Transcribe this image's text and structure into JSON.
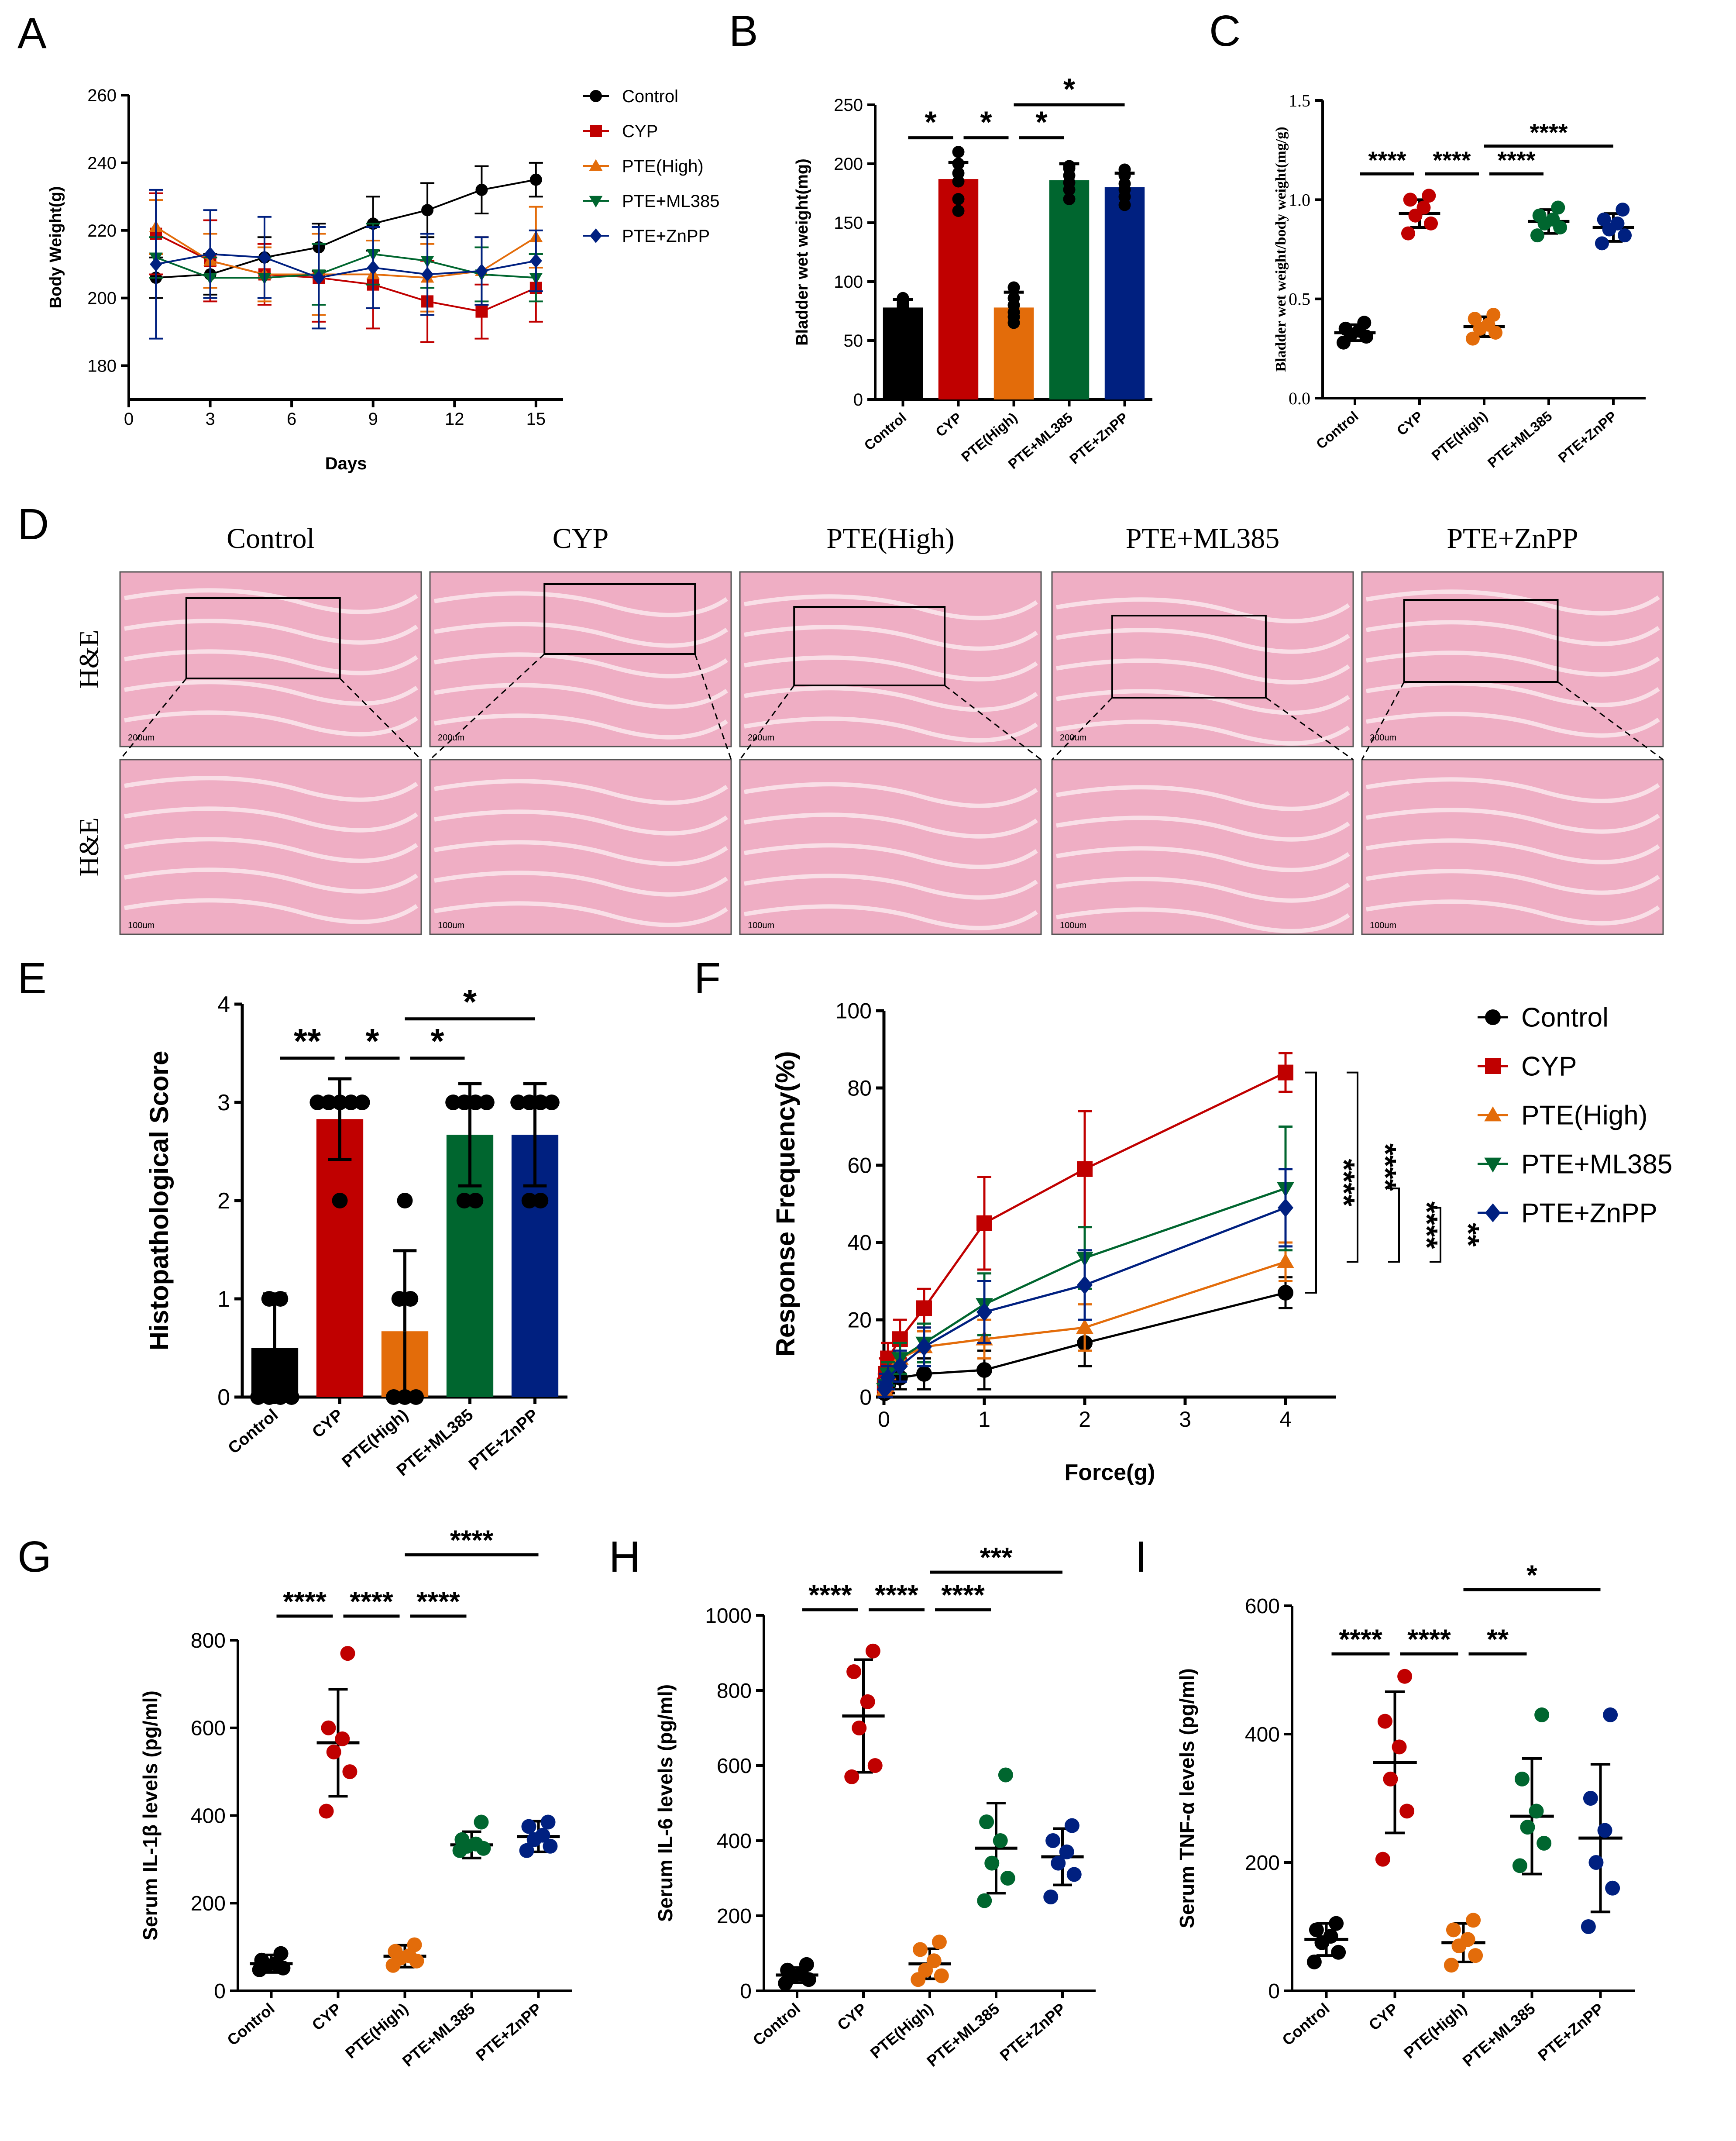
{
  "colors": {
    "Control": "#000000",
    "CYP": "#c00000",
    "PTE(High)": "#e36c0a",
    "PTE+ML385": "#00662f",
    "PTE+ZnPP": "#002080",
    "tissue_pink": "#efaec4"
  },
  "groups": [
    "Control",
    "CYP",
    "PTE(High)",
    "PTE+ML385",
    "PTE+ZnPP"
  ],
  "panel_letters": {
    "A": "A",
    "B": "B",
    "C": "C",
    "D": "D",
    "E": "E",
    "F": "F",
    "G": "G",
    "H": "H",
    "I": "I"
  },
  "chart_data": [
    {
      "id": "A",
      "type": "line",
      "xlabel": "Days",
      "ylabel": "Body Weight(g)",
      "xlim": [
        0,
        16
      ],
      "ylim": [
        170,
        260
      ],
      "xticks": [
        0,
        3,
        6,
        9,
        12,
        15
      ],
      "yticks": [
        180,
        200,
        220,
        240,
        260
      ],
      "legend_position": "right",
      "x": [
        1,
        3,
        5,
        7,
        9,
        11,
        13,
        15
      ],
      "series": [
        {
          "name": "Control",
          "marker": "circle",
          "values": [
            206,
            207,
            212,
            215,
            222,
            226,
            232,
            235
          ],
          "err": [
            6,
            6,
            6,
            7,
            8,
            8,
            7,
            5
          ]
        },
        {
          "name": "CYP",
          "marker": "square",
          "values": [
            219,
            211,
            207,
            206,
            204,
            199,
            196,
            203
          ],
          "err": [
            12,
            12,
            9,
            13,
            13,
            12,
            8,
            10
          ]
        },
        {
          "name": "PTE(High)",
          "marker": "triangle-up",
          "values": [
            221,
            211,
            207,
            207,
            207,
            206,
            208,
            218
          ],
          "err": [
            8,
            8,
            8,
            12,
            10,
            10,
            10,
            9
          ]
        },
        {
          "name": "PTE+ML385",
          "marker": "triangle-down",
          "values": [
            212,
            206,
            206,
            207,
            213,
            211,
            207,
            206
          ],
          "err": [
            6,
            6,
            6,
            9,
            9,
            8,
            8,
            7
          ]
        },
        {
          "name": "PTE+ZnPP",
          "marker": "diamond",
          "values": [
            210,
            213,
            212,
            206,
            209,
            207,
            208,
            211
          ],
          "err": [
            22,
            13,
            12,
            15,
            12,
            12,
            10,
            9
          ]
        }
      ]
    },
    {
      "id": "B",
      "type": "bar",
      "ylabel": "Bladder wet weight(mg)",
      "categories": [
        "Control",
        "CYP",
        "PTE(High)",
        "PTE+ML385",
        "PTE+ZnPP"
      ],
      "values": [
        78,
        187,
        78,
        186,
        180
      ],
      "err": [
        7,
        14,
        13,
        14,
        12
      ],
      "points": [
        [
          72,
          76,
          78,
          80,
          86,
          82
        ],
        [
          160,
          170,
          185,
          192,
          200,
          210
        ],
        [
          65,
          70,
          74,
          80,
          86,
          95
        ],
        [
          170,
          178,
          184,
          190,
          196,
          198
        ],
        [
          165,
          172,
          178,
          183,
          190,
          195
        ]
      ],
      "ylim": [
        0,
        250
      ],
      "yticks": [
        0,
        50,
        100,
        150,
        200,
        250
      ],
      "significance": [
        {
          "from": 0,
          "to": 1,
          "y": 222,
          "label": "*"
        },
        {
          "from": 1,
          "to": 2,
          "y": 222,
          "label": "*"
        },
        {
          "from": 2,
          "to": 3,
          "y": 222,
          "label": "*"
        },
        {
          "from": 2,
          "to": 4,
          "y": 250,
          "label": "*"
        }
      ]
    },
    {
      "id": "C",
      "type": "scatter",
      "ylabel": "Bladder wet weight/body weight(mg/g)",
      "categories": [
        "Control",
        "CYP",
        "PTE(High)",
        "PTE+ML385",
        "PTE+ZnPP"
      ],
      "mean": [
        0.33,
        0.93,
        0.36,
        0.89,
        0.86
      ],
      "sd": [
        0.04,
        0.07,
        0.05,
        0.06,
        0.07
      ],
      "points": [
        [
          0.28,
          0.31,
          0.32,
          0.34,
          0.35,
          0.38
        ],
        [
          0.83,
          0.88,
          0.92,
          0.96,
          1.0,
          1.02
        ],
        [
          0.3,
          0.33,
          0.35,
          0.37,
          0.4,
          0.42
        ],
        [
          0.82,
          0.86,
          0.88,
          0.9,
          0.92,
          0.96
        ],
        [
          0.78,
          0.82,
          0.85,
          0.88,
          0.9,
          0.95
        ]
      ],
      "ylim": [
        0,
        1.5
      ],
      "yticks": [
        0.0,
        0.5,
        1.0,
        1.5
      ],
      "ytick_labels": [
        "0.0",
        "0.5",
        "1.0",
        "1.5"
      ],
      "significance": [
        {
          "from": 0,
          "to": 1,
          "y": 1.13,
          "label": "****"
        },
        {
          "from": 1,
          "to": 2,
          "y": 1.13,
          "label": "****"
        },
        {
          "from": 2,
          "to": 3,
          "y": 1.13,
          "label": "****"
        },
        {
          "from": 2,
          "to": 4,
          "y": 1.27,
          "label": "****"
        }
      ]
    },
    {
      "id": "E",
      "type": "bar",
      "ylabel": "Histopathological Score",
      "categories": [
        "Control",
        "CYP",
        "PTE(High)",
        "PTE+ML385",
        "PTE+ZnPP"
      ],
      "values": [
        0.5,
        2.83,
        0.67,
        2.67,
        2.67
      ],
      "err": [
        0.55,
        0.41,
        0.82,
        0.52,
        0.52
      ],
      "points": [
        [
          0,
          0,
          0,
          0,
          1,
          1
        ],
        [
          2,
          3,
          3,
          3,
          3,
          3
        ],
        [
          0,
          0,
          0,
          1,
          1,
          2
        ],
        [
          2,
          2,
          3,
          3,
          3,
          3
        ],
        [
          2,
          2,
          3,
          3,
          3,
          3
        ]
      ],
      "ylim": [
        0,
        4
      ],
      "yticks": [
        0,
        1,
        2,
        3,
        4
      ],
      "significance": [
        {
          "from": 0,
          "to": 1,
          "y": 3.45,
          "label": "**"
        },
        {
          "from": 1,
          "to": 2,
          "y": 3.45,
          "label": "*"
        },
        {
          "from": 2,
          "to": 3,
          "y": 3.45,
          "label": "*"
        },
        {
          "from": 2,
          "to": 4,
          "y": 3.85,
          "label": "*"
        }
      ]
    },
    {
      "id": "F",
      "type": "line",
      "xlabel": "Force(g)",
      "ylabel": "Response Frequency(%)",
      "xlim": [
        0,
        4.5
      ],
      "ylim": [
        0,
        100
      ],
      "xticks": [
        0,
        1,
        2,
        3,
        4
      ],
      "yticks": [
        0,
        20,
        40,
        60,
        80,
        100
      ],
      "legend_position": "right",
      "x": [
        0.008,
        0.02,
        0.04,
        0.16,
        0.4,
        1,
        2,
        4
      ],
      "series": [
        {
          "name": "Control",
          "marker": "circle",
          "values": [
            1,
            2,
            3,
            5,
            6,
            7,
            14,
            27
          ],
          "err": [
            1,
            2,
            2,
            3,
            4,
            5,
            6,
            4
          ]
        },
        {
          "name": "CYP",
          "marker": "square",
          "values": [
            3,
            6,
            10,
            15,
            23,
            45,
            59,
            84
          ],
          "err": [
            3,
            4,
            4,
            5,
            5,
            12,
            15,
            5
          ]
        },
        {
          "name": "PTE(High)",
          "marker": "triangle-up",
          "values": [
            2,
            3,
            6,
            10,
            13,
            15,
            18,
            35
          ],
          "err": [
            2,
            3,
            3,
            4,
            4,
            5,
            6,
            5
          ]
        },
        {
          "name": "PTE+ML385",
          "marker": "triangle-down",
          "values": [
            2,
            3,
            6,
            10,
            14,
            24,
            36,
            54
          ],
          "err": [
            2,
            3,
            3,
            4,
            5,
            8,
            8,
            16
          ]
        },
        {
          "name": "PTE+ZnPP",
          "marker": "diamond",
          "values": [
            2,
            3,
            5,
            8,
            13,
            22,
            29,
            49
          ],
          "err": [
            2,
            3,
            3,
            4,
            5,
            8,
            9,
            10
          ]
        }
      ],
      "significance_right": [
        {
          "upper": "CYP",
          "lower": "Control",
          "label": "****"
        },
        {
          "upper": "CYP",
          "lower": "PTE(High)",
          "label": "****"
        },
        {
          "upper": "PTE+ML385",
          "lower": "PTE(High)",
          "label": "****"
        },
        {
          "upper": "PTE+ZnPP",
          "lower": "PTE(High)",
          "label": "**"
        }
      ]
    },
    {
      "id": "G",
      "type": "scatter",
      "ylabel": "Serum IL-1β levels (pg/ml)",
      "categories": [
        "Control",
        "CYP",
        "PTE(High)",
        "PTE+ML385",
        "PTE+ZnPP"
      ],
      "mean": [
        62,
        566,
        79,
        333,
        352
      ],
      "sd": [
        20,
        122,
        25,
        30,
        35
      ],
      "points": [
        [
          48,
          52,
          58,
          62,
          70,
          85
        ],
        [
          410,
          500,
          545,
          575,
          600,
          770
        ],
        [
          58,
          68,
          75,
          80,
          90,
          105
        ],
        [
          320,
          325,
          330,
          335,
          345,
          385
        ],
        [
          320,
          330,
          345,
          355,
          375,
          385
        ]
      ],
      "ylim": [
        0,
        800
      ],
      "yticks": [
        0,
        200,
        400,
        600,
        800
      ],
      "significance": [
        {
          "from": 0,
          "to": 1,
          "y": 855,
          "label": "****"
        },
        {
          "from": 1,
          "to": 2,
          "y": 855,
          "label": "****"
        },
        {
          "from": 2,
          "to": 3,
          "y": 855,
          "label": "****"
        },
        {
          "from": 2,
          "to": 4,
          "y": 995,
          "label": "****"
        }
      ]
    },
    {
      "id": "H",
      "type": "scatter",
      "ylabel": "Serum IL-6 levels (pg/ml)",
      "categories": [
        "Control",
        "CYP",
        "PTE(High)",
        "PTE+ML385",
        "PTE+ZnPP"
      ],
      "mean": [
        42,
        732,
        72,
        380,
        357
      ],
      "sd": [
        20,
        150,
        40,
        120,
        75
      ],
      "points": [
        [
          20,
          30,
          40,
          45,
          55,
          70
        ],
        [
          570,
          600,
          700,
          770,
          850,
          905
        ],
        [
          30,
          40,
          55,
          80,
          110,
          130
        ],
        [
          240,
          300,
          340,
          400,
          450,
          575
        ],
        [
          250,
          310,
          340,
          370,
          400,
          440
        ]
      ],
      "ylim": [
        0,
        1000
      ],
      "yticks": [
        0,
        200,
        400,
        600,
        800,
        1000
      ],
      "significance": [
        {
          "from": 0,
          "to": 1,
          "y": 1015,
          "label": "****"
        },
        {
          "from": 1,
          "to": 2,
          "y": 1015,
          "label": "****"
        },
        {
          "from": 2,
          "to": 3,
          "y": 1015,
          "label": "****"
        },
        {
          "from": 2,
          "to": 4,
          "y": 1115,
          "label": "***"
        }
      ]
    },
    {
      "id": "I",
      "type": "scatter",
      "ylabel": "Serum TNF-α levels (pg/ml)",
      "categories": [
        "Control",
        "CYP",
        "PTE(High)",
        "PTE+ML385",
        "PTE+ZnPP"
      ],
      "mean": [
        80,
        356,
        75,
        272,
        238
      ],
      "sd": [
        25,
        110,
        30,
        90,
        115
      ],
      "points": [
        [
          45,
          60,
          75,
          85,
          95,
          105
        ],
        [
          205,
          280,
          330,
          380,
          420,
          490
        ],
        [
          40,
          55,
          70,
          80,
          95,
          110
        ],
        [
          195,
          230,
          255,
          280,
          330,
          430
        ],
        [
          100,
          160,
          200,
          250,
          300,
          430
        ]
      ],
      "ylim": [
        0,
        600
      ],
      "yticks": [
        0,
        200,
        400,
        600
      ],
      "significance": [
        {
          "from": 0,
          "to": 1,
          "y": 525,
          "label": "****"
        },
        {
          "from": 1,
          "to": 2,
          "y": 525,
          "label": "****"
        },
        {
          "from": 2,
          "to": 3,
          "y": 525,
          "label": "**"
        },
        {
          "from": 2,
          "to": 4,
          "y": 625,
          "label": "*"
        }
      ]
    }
  ],
  "histology": {
    "column_titles": [
      "Control",
      "CYP",
      "PTE(High)",
      "PTE+ML385",
      "PTE+ZnPP"
    ],
    "row_labels": [
      "H&E",
      "H&E"
    ],
    "scale_bars": [
      "200um",
      "100um"
    ]
  }
}
